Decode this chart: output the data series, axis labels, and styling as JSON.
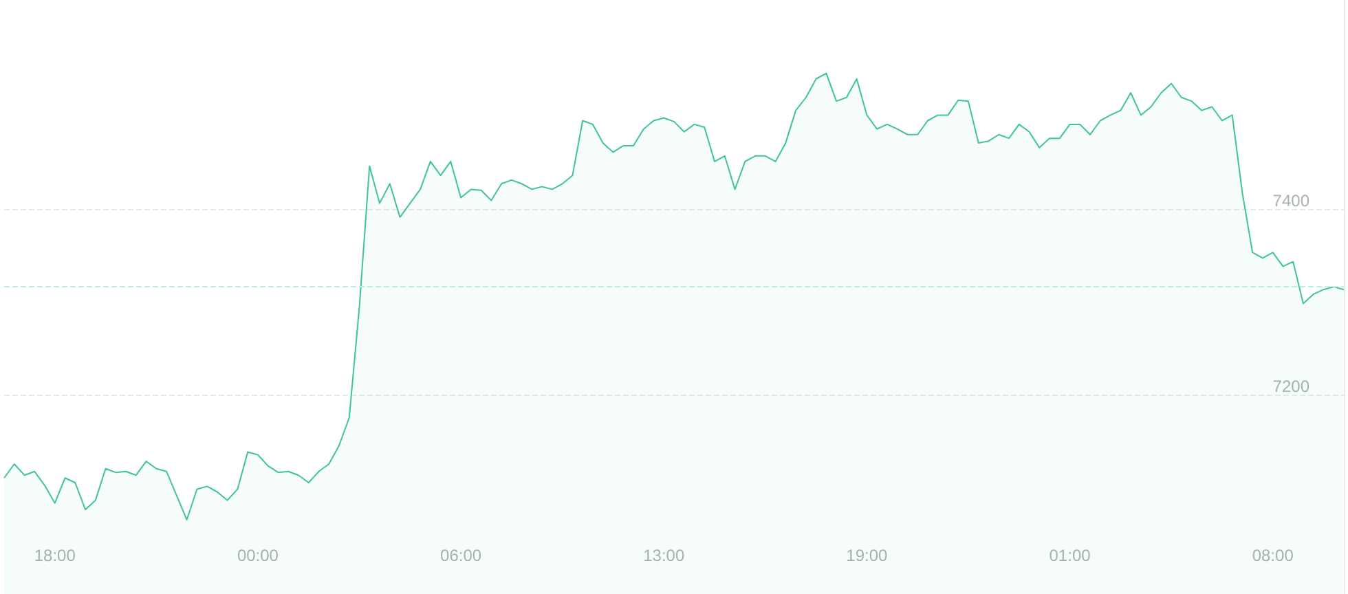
{
  "chart_data": {
    "type": "area",
    "categories": [
      null,
      null,
      null,
      null,
      null,
      "18:00",
      null,
      null,
      null,
      null,
      null,
      null,
      null,
      null,
      null,
      null,
      null,
      null,
      null,
      null,
      null,
      null,
      null,
      null,
      null,
      "00:00",
      null,
      null,
      null,
      null,
      null,
      null,
      null,
      null,
      null,
      null,
      null,
      null,
      null,
      null,
      null,
      null,
      null,
      null,
      null,
      "06:00",
      null,
      null,
      null,
      null,
      null,
      null,
      null,
      null,
      null,
      null,
      null,
      null,
      null,
      null,
      null,
      null,
      null,
      null,
      null,
      "13:00",
      null,
      null,
      null,
      null,
      null,
      null,
      null,
      null,
      null,
      null,
      null,
      null,
      null,
      null,
      null,
      null,
      null,
      null,
      null,
      "19:00",
      null,
      null,
      null,
      null,
      null,
      null,
      null,
      null,
      null,
      null,
      null,
      null,
      null,
      null,
      null,
      null,
      null,
      null,
      null,
      "01:00",
      null,
      null,
      null,
      null,
      null,
      null,
      null,
      null,
      null,
      null,
      null,
      null,
      null,
      null,
      null,
      null,
      null,
      null,
      null,
      "08:00",
      null,
      null,
      null,
      null,
      null,
      null,
      null
    ],
    "series": [
      {
        "color": "#3fc39a",
        "values": [
          7110,
          7125,
          7113,
          7117,
          7102,
          7083,
          7110,
          7105,
          7076,
          7086,
          7120,
          7116,
          7117,
          7113,
          7128,
          7120,
          7117,
          7091,
          7065,
          7098,
          7101,
          7095,
          7086,
          7098,
          7138,
          7135,
          7123,
          7116,
          7117,
          7113,
          7105,
          7117,
          7125,
          7145,
          7175,
          7294,
          7446,
          7406,
          7427,
          7391,
          7406,
          7421,
          7451,
          7436,
          7451,
          7412,
          7421,
          7420,
          7409,
          7427,
          7431,
          7427,
          7421,
          7424,
          7421,
          7427,
          7436,
          7495,
          7491,
          7471,
          7461,
          7468,
          7468,
          7486,
          7495,
          7498,
          7494,
          7483,
          7491,
          7488,
          7451,
          7457,
          7421,
          7451,
          7457,
          7457,
          7451,
          7471,
          7506,
          7520,
          7540,
          7546,
          7516,
          7520,
          7540,
          7501,
          7486,
          7491,
          7486,
          7480,
          7480,
          7495,
          7501,
          7501,
          7517,
          7516,
          7471,
          7473,
          7480,
          7476,
          7491,
          7483,
          7466,
          7476,
          7476,
          7491,
          7491,
          7480,
          7495,
          7501,
          7506,
          7525,
          7501,
          7510,
          7525,
          7535,
          7520,
          7516,
          7506,
          7510,
          7495,
          7501,
          7417,
          7353,
          7347,
          7353,
          7338,
          7343,
          7298,
          7308,
          7313,
          7316,
          7313
        ]
      }
    ],
    "ylim": [
      6985,
      7625
    ],
    "yticks": [
      7200,
      7400
    ],
    "grid": "y",
    "ref_lines": [
      {
        "axis": "y",
        "value": 7316,
        "color": "#bdeee2",
        "line_style": "dashed"
      }
    ]
  }
}
